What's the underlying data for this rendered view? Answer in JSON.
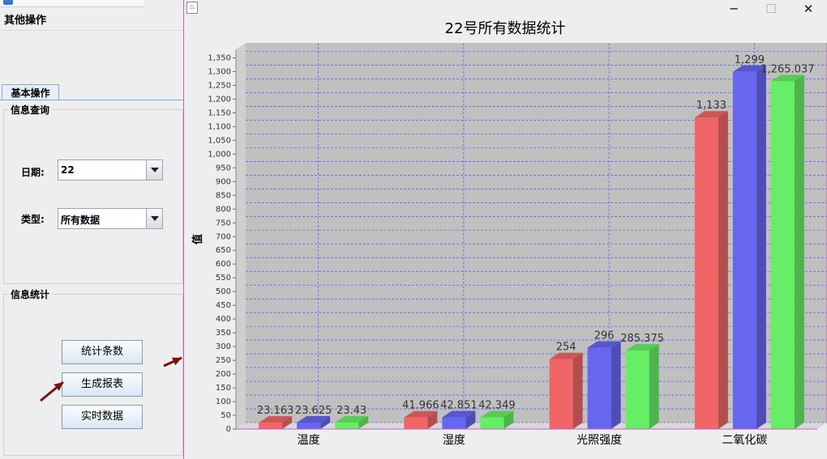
{
  "left_window": {
    "title": "",
    "menu": {
      "other_ops": "其他操作"
    },
    "tab_label": "基本操作",
    "query_group": {
      "title": "信息查询",
      "date_label": "日期:",
      "date_value": "22",
      "type_label": "类型:",
      "type_value": "所有数据"
    },
    "stats_group": {
      "title": "信息统计",
      "btn_count": "统计条数",
      "btn_report": "生成报表",
      "btn_realtime": "实时数据"
    }
  },
  "chart_window": {
    "controls": {
      "minimize": "─",
      "maximize": "☐",
      "close": "✕"
    },
    "icon_name": "java-app-icon"
  },
  "colors": {
    "series1": "#f06666",
    "series2": "#6666f0",
    "series3": "#66ee66",
    "plot_bg": "#c0c0c0",
    "grid": "#4444ff",
    "annotation_arrow": "#7a1010"
  },
  "chart_data": {
    "type": "bar",
    "title": "22号所有数据统计",
    "ylabel": "值",
    "xlabel": "",
    "categories": [
      "温度",
      "湿度",
      "光照强度",
      "二氧化碳"
    ],
    "series": [
      {
        "values": [
          23.163,
          41.966,
          254,
          1133
        ],
        "labels": [
          "23.163",
          "41.966",
          "254",
          "1,133"
        ]
      },
      {
        "values": [
          23.625,
          42.851,
          296,
          1299
        ],
        "labels": [
          "23.625",
          "42.851",
          "296",
          "1,299"
        ]
      },
      {
        "values": [
          23.43,
          42.349,
          285.375,
          1265.037
        ],
        "labels": [
          "23.43",
          "42.349",
          "285.375",
          "1,265.037"
        ]
      }
    ],
    "ylim": [
      0,
      1375
    ],
    "ytick_step": 50,
    "grid": true,
    "style": "3d",
    "legend": "none"
  }
}
